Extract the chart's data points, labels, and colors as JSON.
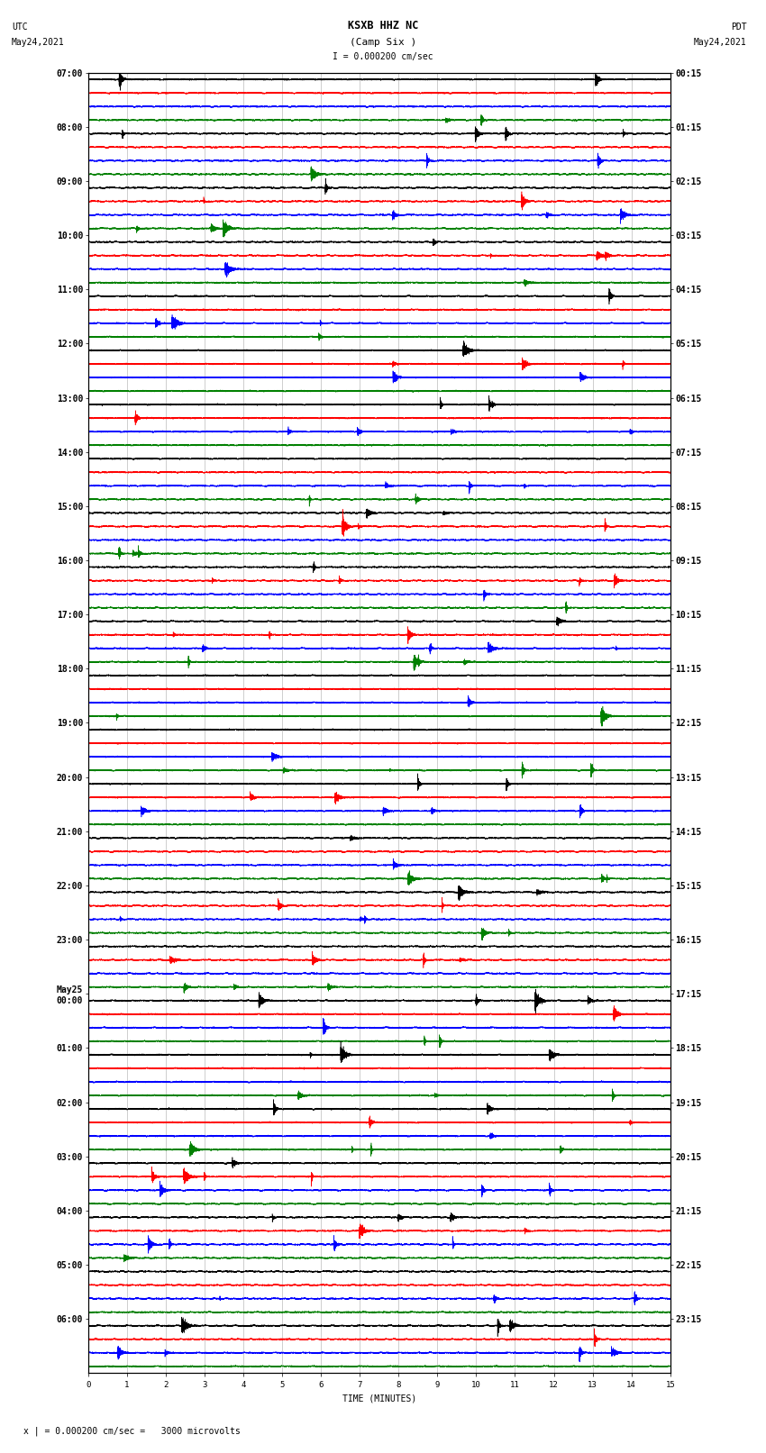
{
  "title": "KSXB HHZ NC",
  "subtitle": "(Camp Six )",
  "scale_label": "I = 0.000200 cm/sec",
  "footer_label": "x | = 0.000200 cm/sec =   3000 microvolts",
  "xlabel": "TIME (MINUTES)",
  "left_times": [
    "07:00",
    "08:00",
    "09:00",
    "10:00",
    "11:00",
    "12:00",
    "13:00",
    "14:00",
    "15:00",
    "16:00",
    "17:00",
    "18:00",
    "19:00",
    "20:00",
    "21:00",
    "22:00",
    "23:00",
    "May25\n00:00",
    "01:00",
    "02:00",
    "03:00",
    "04:00",
    "05:00",
    "06:00"
  ],
  "right_times": [
    "00:15",
    "01:15",
    "02:15",
    "03:15",
    "04:15",
    "05:15",
    "06:15",
    "07:15",
    "08:15",
    "09:15",
    "10:15",
    "11:15",
    "12:15",
    "13:15",
    "14:15",
    "15:15",
    "16:15",
    "17:15",
    "18:15",
    "19:15",
    "20:15",
    "21:15",
    "22:15",
    "23:15"
  ],
  "n_groups": 24,
  "traces_per_group": 4,
  "trace_colors": [
    "black",
    "red",
    "blue",
    "green"
  ],
  "minutes": 15,
  "sample_rate": 40,
  "amplitude_scale": 0.28,
  "background_color": "white",
  "fig_width": 8.5,
  "fig_height": 16.13,
  "dpi": 100,
  "xmin": 0,
  "xmax": 15,
  "xticks": [
    0,
    1,
    2,
    3,
    4,
    5,
    6,
    7,
    8,
    9,
    10,
    11,
    12,
    13,
    14,
    15
  ],
  "title_fontsize": 8.5,
  "label_fontsize": 7,
  "tick_fontsize": 6.5,
  "ytick_fontsize": 7
}
